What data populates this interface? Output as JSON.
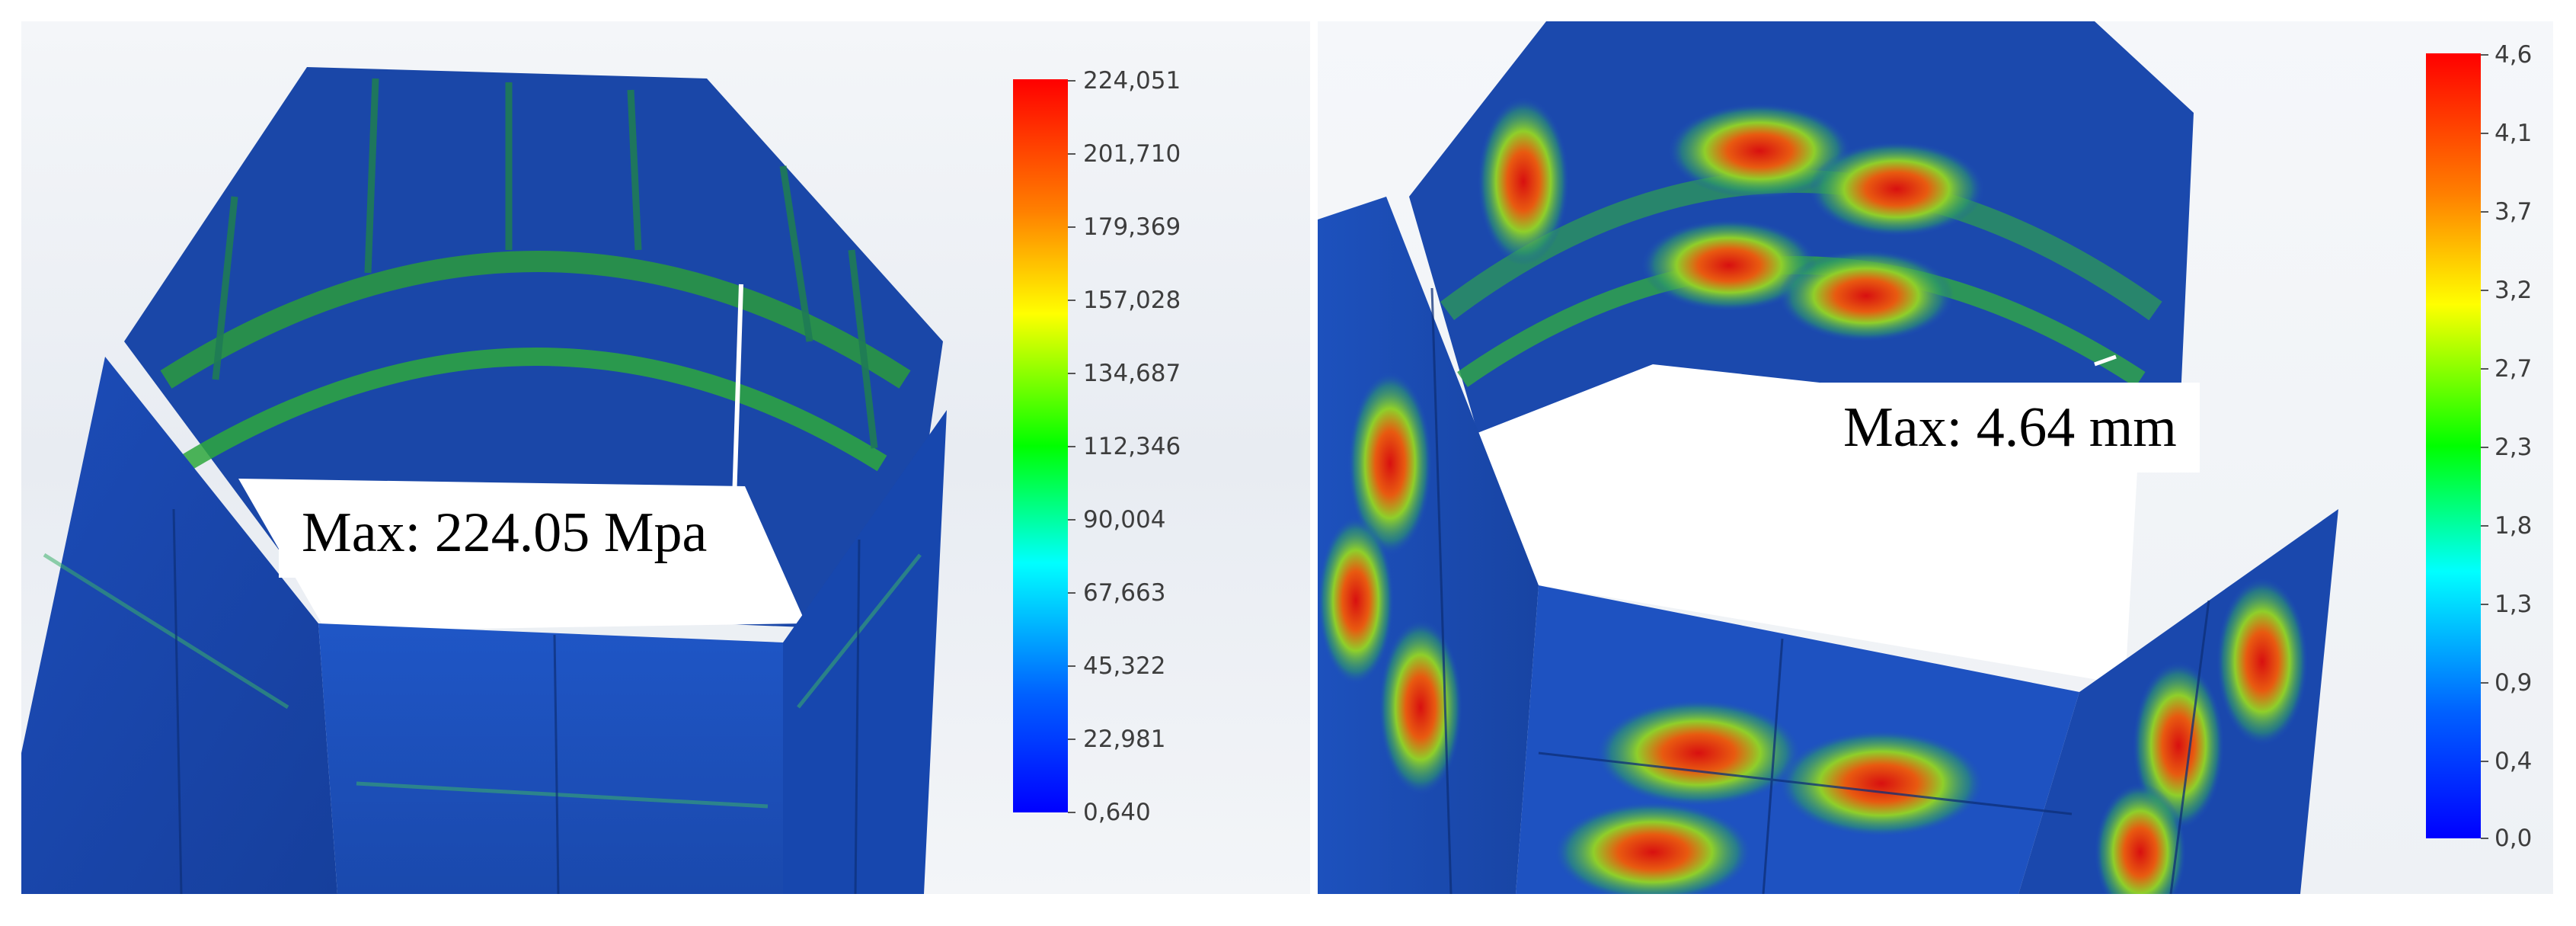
{
  "left_panel": {
    "annotation": "Max: 224.05 Mpa",
    "legend_ticks": [
      "224,051",
      "201,710",
      "179,369",
      "157,028",
      "134,687",
      "112,346",
      "90,004",
      "67,663",
      "45,322",
      "22,981",
      "0,640"
    ]
  },
  "right_panel": {
    "annotation": "Max: 4.64 mm",
    "legend_ticks": [
      "4,6",
      "4,1",
      "3,7",
      "3,2",
      "2,7",
      "2,3",
      "1,8",
      "1,3",
      "0,9",
      "0,4",
      "0,0"
    ]
  },
  "colors": {
    "scale": [
      "#ff0000",
      "#ff8000",
      "#ffff00",
      "#00ff00",
      "#00ffff",
      "#0060ff",
      "#0000ff"
    ],
    "model_base": "#1e4fbf",
    "model_dark": "#133a8f",
    "hotspot": "#e02010"
  }
}
